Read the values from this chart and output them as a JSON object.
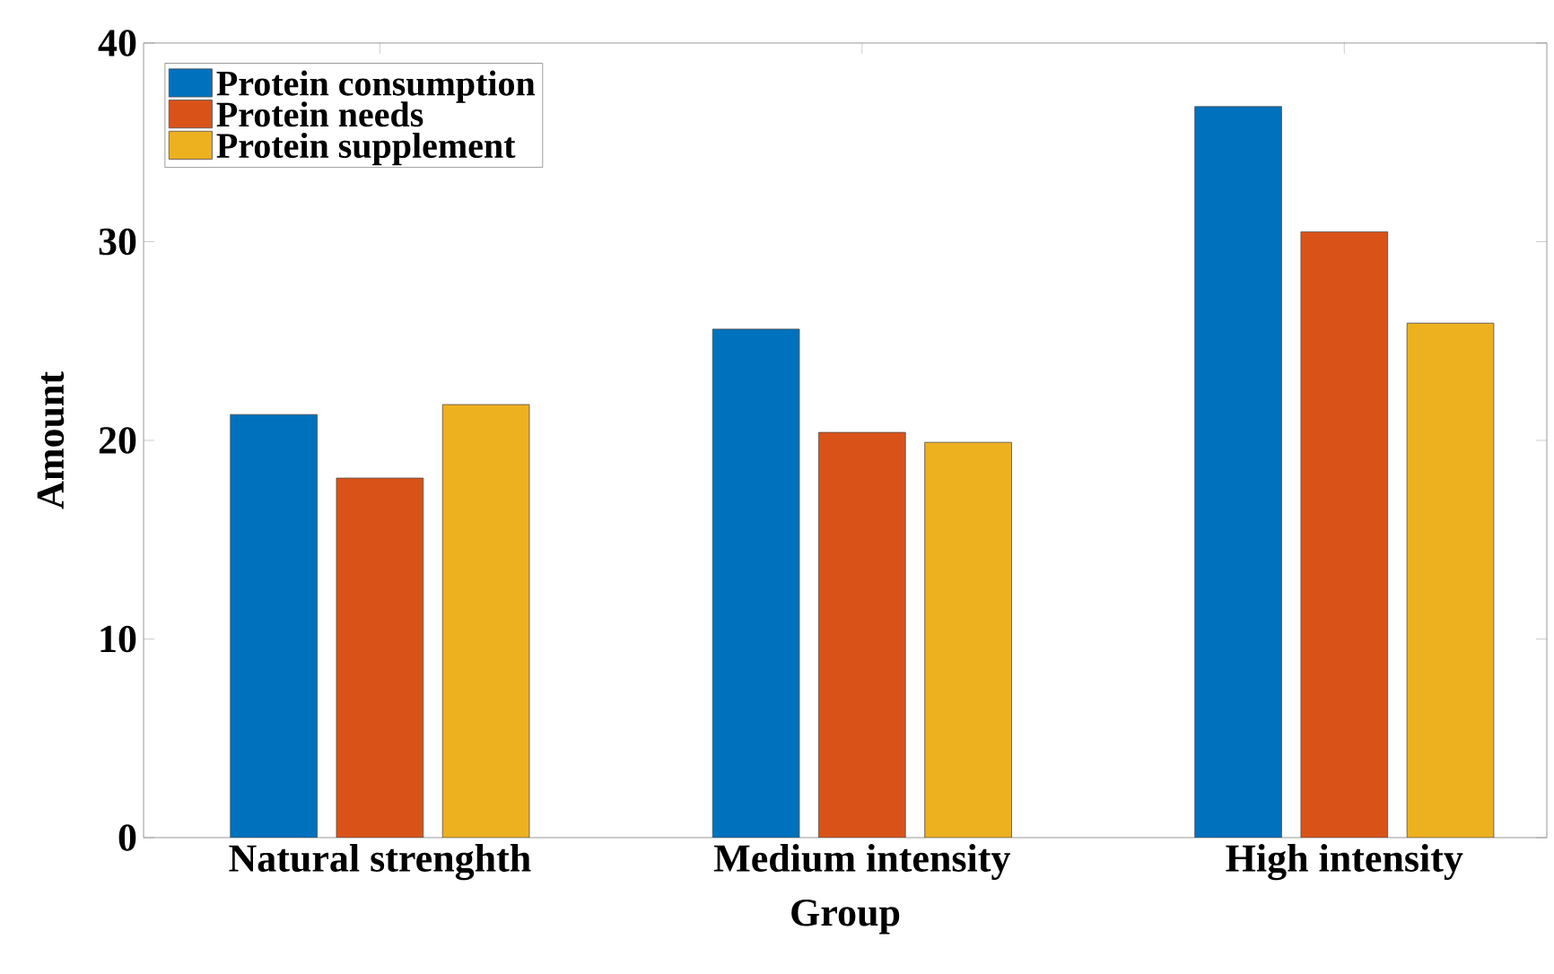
{
  "chart_data": {
    "type": "bar",
    "xlabel": "Group",
    "ylabel": "Amount",
    "categories": [
      "Natural strenghth",
      "Medium intensity",
      "High intensity"
    ],
    "series": [
      {
        "name": "Protein consumption",
        "color": "#0072bd",
        "values": [
          21.3,
          25.6,
          36.8
        ]
      },
      {
        "name": "Protein needs",
        "color": "#d95319",
        "values": [
          18.1,
          20.4,
          30.5
        ]
      },
      {
        "name": "Protein supplement",
        "color": "#edb120",
        "values": [
          21.8,
          19.9,
          25.9
        ]
      }
    ],
    "ylim": [
      0,
      40
    ],
    "yticks": [
      0,
      10,
      20,
      30,
      40
    ],
    "legend": "top left",
    "grid": false
  }
}
